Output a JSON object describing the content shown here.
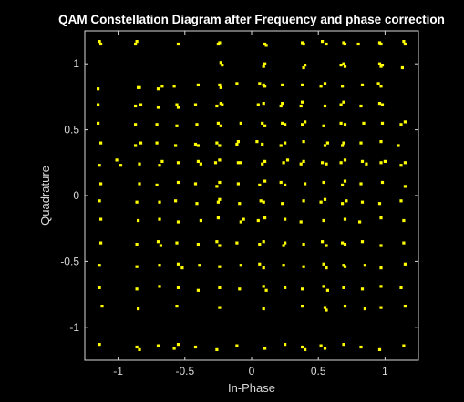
{
  "chart_data": {
    "type": "scatter",
    "title": "QAM Constellation Diagram after Frequency and phase correction",
    "xlabel": "In-Phase",
    "ylabel": "Quadrature",
    "xlim": [
      -1.25,
      1.25
    ],
    "ylim": [
      -1.25,
      1.25
    ],
    "xticks": [
      -1,
      -0.5,
      0,
      0.5,
      1
    ],
    "yticks": [
      -1,
      -0.5,
      0,
      0.5,
      1
    ],
    "xtick_labels": [
      "-1",
      "-0.5",
      "0",
      "0.5",
      "1"
    ],
    "ytick_labels": [
      "-1",
      "-0.5",
      "0",
      "0.5",
      "1"
    ],
    "grid": false,
    "colors": {
      "background": "#000000",
      "plot_background": "#000000",
      "axes": "#d9d9d9",
      "marker": "#ffff00"
    },
    "marker": "square",
    "series": [
      {
        "x": [
          -1.13,
          -1.14,
          -0.87,
          -0.86,
          -0.55,
          -0.24,
          -0.25,
          0.1,
          0.11,
          0.38,
          0.39,
          0.53,
          0.56,
          0.69,
          0.7,
          0.8,
          0.96,
          0.97,
          1.14,
          1.15,
          -0.23,
          -0.22,
          0.09,
          0.1,
          0.39,
          0.4,
          0.67,
          0.69,
          0.7,
          0.96,
          0.97,
          0.98,
          1.13,
          -1.15,
          -0.85,
          -0.84,
          -0.7,
          -0.67,
          -0.58,
          -0.4,
          -0.24,
          -0.23,
          -0.11,
          0.06,
          0.09,
          0.1,
          0.23,
          0.38,
          0.52,
          0.55,
          0.68,
          0.83,
          0.95,
          0.97,
          -1.15,
          -0.87,
          -0.83,
          -0.7,
          -0.56,
          -0.55,
          -0.42,
          -0.26,
          -0.23,
          -0.22,
          0.05,
          0.09,
          0.22,
          0.23,
          0.37,
          0.38,
          0.55,
          0.67,
          0.69,
          0.82,
          0.96,
          0.98,
          -1.15,
          -0.87,
          -0.71,
          -0.56,
          -0.41,
          -0.25,
          -0.23,
          -0.08,
          0.08,
          0.1,
          0.23,
          0.25,
          0.38,
          0.4,
          0.54,
          0.67,
          0.7,
          0.84,
          0.98,
          1.12,
          1.15,
          -1.13,
          -0.87,
          -0.83,
          -0.71,
          -0.57,
          -0.42,
          -0.4,
          -0.26,
          -0.24,
          -0.11,
          -0.1,
          0.04,
          0.08,
          0.22,
          0.25,
          0.39,
          0.55,
          0.57,
          0.68,
          0.69,
          0.82,
          0.97,
          1.1,
          -1.14,
          -1.01,
          -0.98,
          -0.84,
          -0.69,
          -0.67,
          -0.55,
          -0.4,
          -0.38,
          -0.27,
          -0.24,
          -0.1,
          -0.08,
          0.08,
          0.1,
          0.24,
          0.27,
          0.37,
          0.39,
          0.53,
          0.56,
          0.67,
          0.7,
          0.83,
          0.86,
          0.97,
          1.0,
          1.12,
          1.15,
          -1.13,
          -0.84,
          -0.71,
          -0.55,
          -0.42,
          -0.26,
          -0.24,
          -0.1,
          0.06,
          0.1,
          0.22,
          0.25,
          0.4,
          0.54,
          0.68,
          0.7,
          0.82,
          0.98,
          1.15,
          -1.14,
          -0.86,
          -0.69,
          -0.57,
          -0.41,
          -0.25,
          -0.24,
          -0.09,
          0.07,
          0.09,
          0.23,
          0.39,
          0.52,
          0.55,
          0.68,
          0.71,
          0.83,
          0.96,
          1.12,
          -1.13,
          -0.85,
          -0.69,
          -0.55,
          -0.38,
          -0.25,
          -0.08,
          -0.06,
          0.05,
          0.1,
          0.25,
          0.37,
          0.54,
          0.7,
          0.81,
          0.97,
          1.14,
          -1.13,
          -0.86,
          -0.7,
          -0.68,
          -0.56,
          -0.4,
          -0.26,
          -0.24,
          -0.11,
          0.06,
          0.09,
          0.24,
          0.25,
          0.39,
          0.53,
          0.56,
          0.68,
          0.7,
          0.83,
          0.97,
          1.14,
          -1.14,
          -0.86,
          -0.69,
          -0.55,
          -0.52,
          -0.39,
          -0.24,
          -0.08,
          0.06,
          0.09,
          0.24,
          0.39,
          0.54,
          0.56,
          0.69,
          0.7,
          0.85,
          0.97,
          1.15,
          -1.14,
          -0.86,
          -0.69,
          -0.55,
          -0.4,
          -0.24,
          -0.09,
          0.09,
          0.11,
          0.25,
          0.38,
          0.54,
          0.57,
          0.69,
          0.83,
          0.97,
          1.12,
          -1.12,
          -0.85,
          -0.56,
          -0.24,
          0.09,
          0.38,
          0.55,
          0.56,
          0.7,
          0.85,
          0.97,
          1.15,
          -1.14,
          -0.86,
          -0.84,
          -0.7,
          -0.58,
          -0.55,
          -0.42,
          -0.26,
          -0.11,
          0.1,
          0.25,
          0.38,
          0.4,
          0.52,
          0.55,
          0.69,
          0.82,
          0.96,
          1.14
        ],
        "y": [
          1.15,
          1.17,
          1.15,
          1.17,
          1.15,
          1.16,
          1.15,
          1.15,
          1.14,
          1.16,
          1.15,
          1.17,
          1.15,
          1.16,
          1.15,
          1.15,
          1.16,
          1.15,
          1.17,
          1.15,
          1.01,
          0.99,
          0.98,
          1.0,
          0.97,
          0.99,
          0.99,
          1.0,
          0.98,
          1.0,
          0.98,
          0.99,
          0.97,
          0.81,
          0.82,
          0.82,
          0.81,
          0.83,
          0.83,
          0.84,
          0.84,
          0.82,
          0.85,
          0.85,
          0.84,
          0.83,
          0.84,
          0.84,
          0.83,
          0.85,
          0.83,
          0.84,
          0.85,
          0.83,
          0.69,
          0.68,
          0.69,
          0.67,
          0.69,
          0.67,
          0.69,
          0.68,
          0.7,
          0.69,
          0.69,
          0.7,
          0.68,
          0.7,
          0.68,
          0.71,
          0.68,
          0.69,
          0.71,
          0.68,
          0.7,
          0.69,
          0.55,
          0.54,
          0.54,
          0.53,
          0.54,
          0.55,
          0.53,
          0.55,
          0.55,
          0.53,
          0.55,
          0.54,
          0.54,
          0.56,
          0.53,
          0.55,
          0.54,
          0.55,
          0.55,
          0.54,
          0.56,
          0.4,
          0.38,
          0.4,
          0.4,
          0.38,
          0.39,
          0.38,
          0.4,
          0.38,
          0.39,
          0.41,
          0.41,
          0.39,
          0.38,
          0.4,
          0.41,
          0.38,
          0.4,
          0.38,
          0.4,
          0.4,
          0.41,
          0.38,
          0.23,
          0.27,
          0.23,
          0.24,
          0.23,
          0.26,
          0.25,
          0.26,
          0.24,
          0.25,
          0.27,
          0.25,
          0.25,
          0.24,
          0.26,
          0.25,
          0.27,
          0.24,
          0.26,
          0.25,
          0.24,
          0.25,
          0.27,
          0.26,
          0.24,
          0.25,
          0.26,
          0.23,
          0.25,
          0.09,
          0.09,
          0.08,
          0.1,
          0.09,
          0.07,
          0.1,
          0.09,
          0.08,
          0.11,
          0.1,
          0.08,
          0.09,
          0.1,
          0.08,
          0.11,
          0.09,
          0.1,
          0.07,
          -0.04,
          -0.05,
          -0.05,
          -0.04,
          -0.06,
          -0.05,
          -0.03,
          -0.06,
          -0.04,
          -0.05,
          -0.06,
          -0.04,
          -0.05,
          -0.03,
          -0.06,
          -0.04,
          -0.05,
          -0.06,
          -0.04,
          -0.18,
          -0.19,
          -0.18,
          -0.2,
          -0.19,
          -0.17,
          -0.2,
          -0.18,
          -0.19,
          -0.17,
          -0.18,
          -0.2,
          -0.19,
          -0.18,
          -0.2,
          -0.17,
          -0.19,
          -0.36,
          -0.37,
          -0.35,
          -0.38,
          -0.36,
          -0.37,
          -0.35,
          -0.38,
          -0.36,
          -0.37,
          -0.35,
          -0.38,
          -0.36,
          -0.37,
          -0.35,
          -0.38,
          -0.36,
          -0.37,
          -0.35,
          -0.38,
          -0.36,
          -0.53,
          -0.54,
          -0.53,
          -0.52,
          -0.55,
          -0.53,
          -0.54,
          -0.53,
          -0.52,
          -0.55,
          -0.53,
          -0.54,
          -0.52,
          -0.55,
          -0.53,
          -0.54,
          -0.53,
          -0.55,
          -0.52,
          -0.7,
          -0.71,
          -0.69,
          -0.7,
          -0.72,
          -0.7,
          -0.71,
          -0.69,
          -0.72,
          -0.7,
          -0.71,
          -0.69,
          -0.72,
          -0.7,
          -0.71,
          -0.69,
          -0.7,
          -0.84,
          -0.86,
          -0.84,
          -0.85,
          -0.86,
          -0.84,
          -0.85,
          -0.87,
          -0.84,
          -0.86,
          -0.85,
          -0.84,
          -1.13,
          -1.15,
          -1.17,
          -1.14,
          -1.16,
          -1.13,
          -1.15,
          -1.17,
          -1.14,
          -1.16,
          -1.13,
          -1.15,
          -1.17,
          -1.14,
          -1.16,
          -1.13,
          -1.15,
          -1.17,
          -1.14
        ]
      }
    ]
  }
}
